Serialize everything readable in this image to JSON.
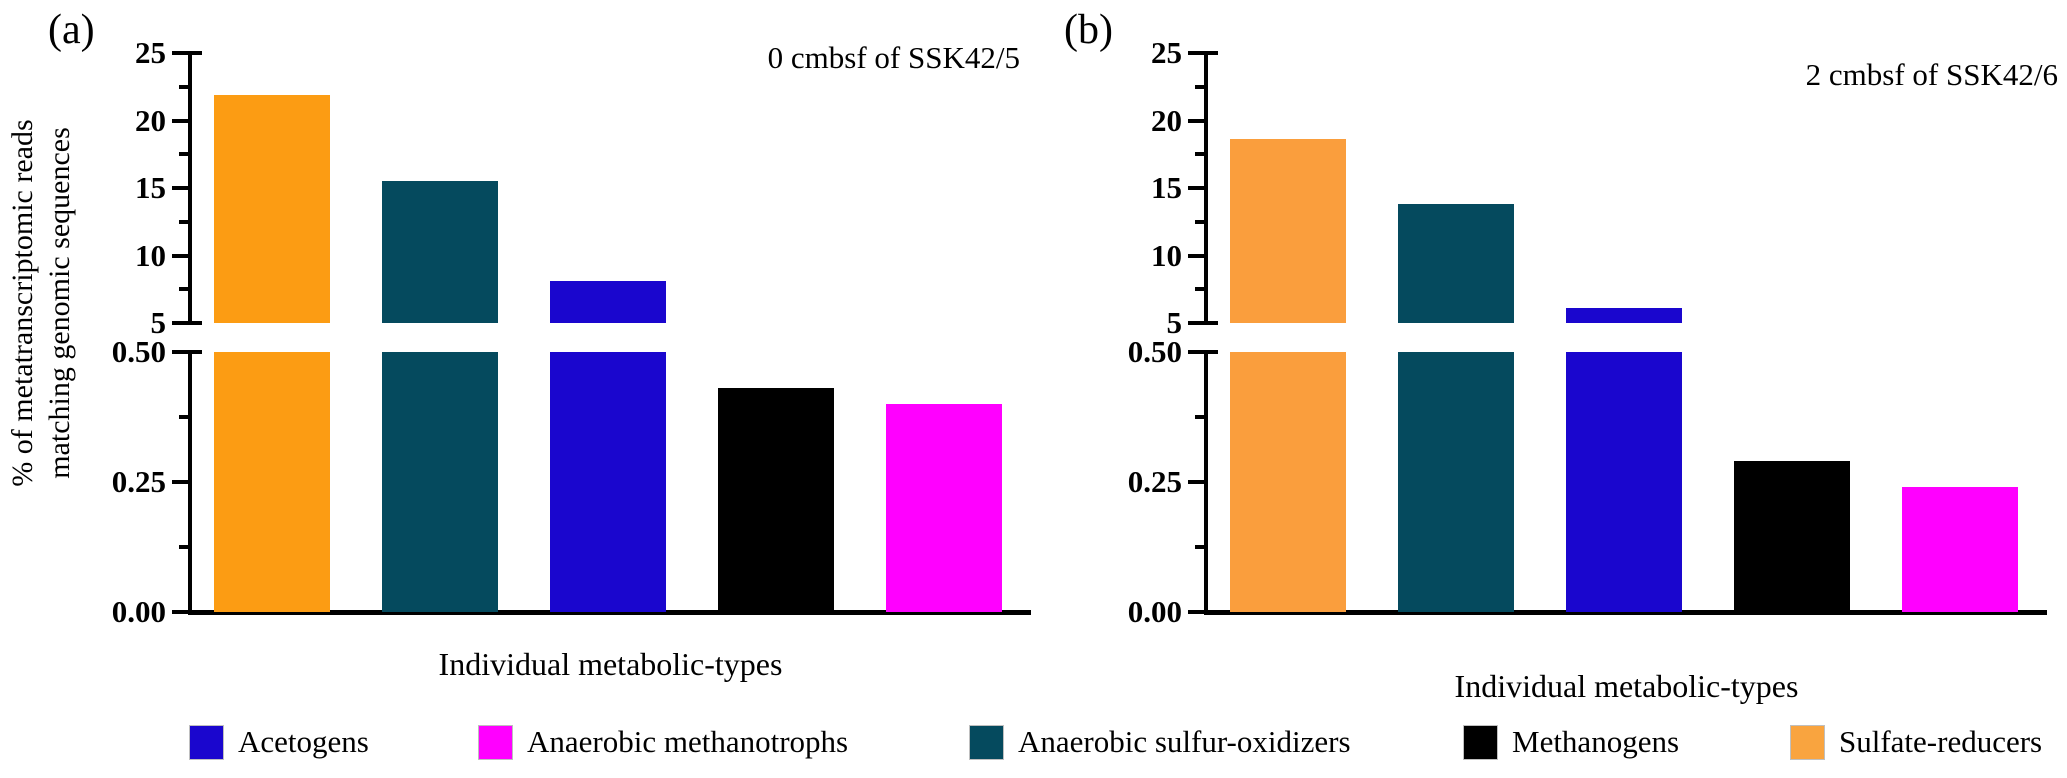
{
  "figure": {
    "ylabel_line1": "% of metatranscriptomic reads",
    "ylabel_line2": "matching genomic sequences",
    "legend": [
      {
        "label": "Acetogens",
        "color": "#1A06CE"
      },
      {
        "label": "Anaerobic methanotrophs",
        "color": "#FF00FF"
      },
      {
        "label": "Anaerobic sulfur-oxidizers",
        "color": "#054A5E"
      },
      {
        "label": "Methanogens",
        "color": "#000000"
      },
      {
        "label": "Sulfate-reducers",
        "color": "#F9A43F"
      }
    ]
  },
  "chart_data": [
    {
      "type": "bar",
      "panel_label": "(a)",
      "title": "0 cmbsf of SSK42/5",
      "xlabel": "Individual metabolic-types",
      "categories": [
        "Sulfate-reducers",
        "Anaerobic sulfur-oxidizers",
        "Acetogens",
        "Methanogens",
        "Anaerobic methanotrophs"
      ],
      "values": [
        21.9,
        15.5,
        8.1,
        0.43,
        0.4
      ],
      "colors": [
        "#FC9C13",
        "#054A5E",
        "#1A06CE",
        "#000000",
        "#FF00FF"
      ],
      "axis_break": {
        "top_range": [
          5,
          25
        ],
        "bottom_range": [
          0,
          0.5
        ]
      },
      "yticks_top": {
        "labels": [
          "25",
          "20",
          "15",
          "10",
          "5"
        ],
        "values": [
          25,
          20,
          15,
          10,
          5
        ],
        "minor": [
          22.5,
          17.5,
          12.5,
          7.5
        ]
      },
      "yticks_bottom": {
        "labels": [
          "0.50",
          "0.25",
          "0.00"
        ],
        "values": [
          0.5,
          0.25,
          0
        ],
        "minor": [
          0.375,
          0.125
        ]
      },
      "grid": false,
      "legend_position": "bottom"
    },
    {
      "type": "bar",
      "panel_label": "(b)",
      "title": "2 cmbsf of SSK42/6",
      "xlabel": "Individual metabolic-types",
      "categories": [
        "Sulfate-reducers",
        "Anaerobic sulfur-oxidizers",
        "Acetogens",
        "Methanogens",
        "Anaerobic methanotrophs"
      ],
      "values": [
        18.6,
        13.8,
        6.1,
        0.29,
        0.24
      ],
      "colors": [
        "#FA9E3D",
        "#054A5E",
        "#1A06CE",
        "#000000",
        "#FF00FF"
      ],
      "axis_break": {
        "top_range": [
          5,
          25
        ],
        "bottom_range": [
          0,
          0.5
        ]
      },
      "yticks_top": {
        "labels": [
          "25",
          "20",
          "15",
          "10",
          "5"
        ],
        "values": [
          25,
          20,
          15,
          10,
          5
        ],
        "minor": [
          22.5,
          17.5,
          12.5,
          7.5
        ]
      },
      "yticks_bottom": {
        "labels": [
          "0.50",
          "0.25",
          "0.00"
        ],
        "values": [
          0.5,
          0.25,
          0
        ],
        "minor": [
          0.375,
          0.125
        ]
      },
      "grid": false,
      "legend_position": "bottom"
    }
  ]
}
